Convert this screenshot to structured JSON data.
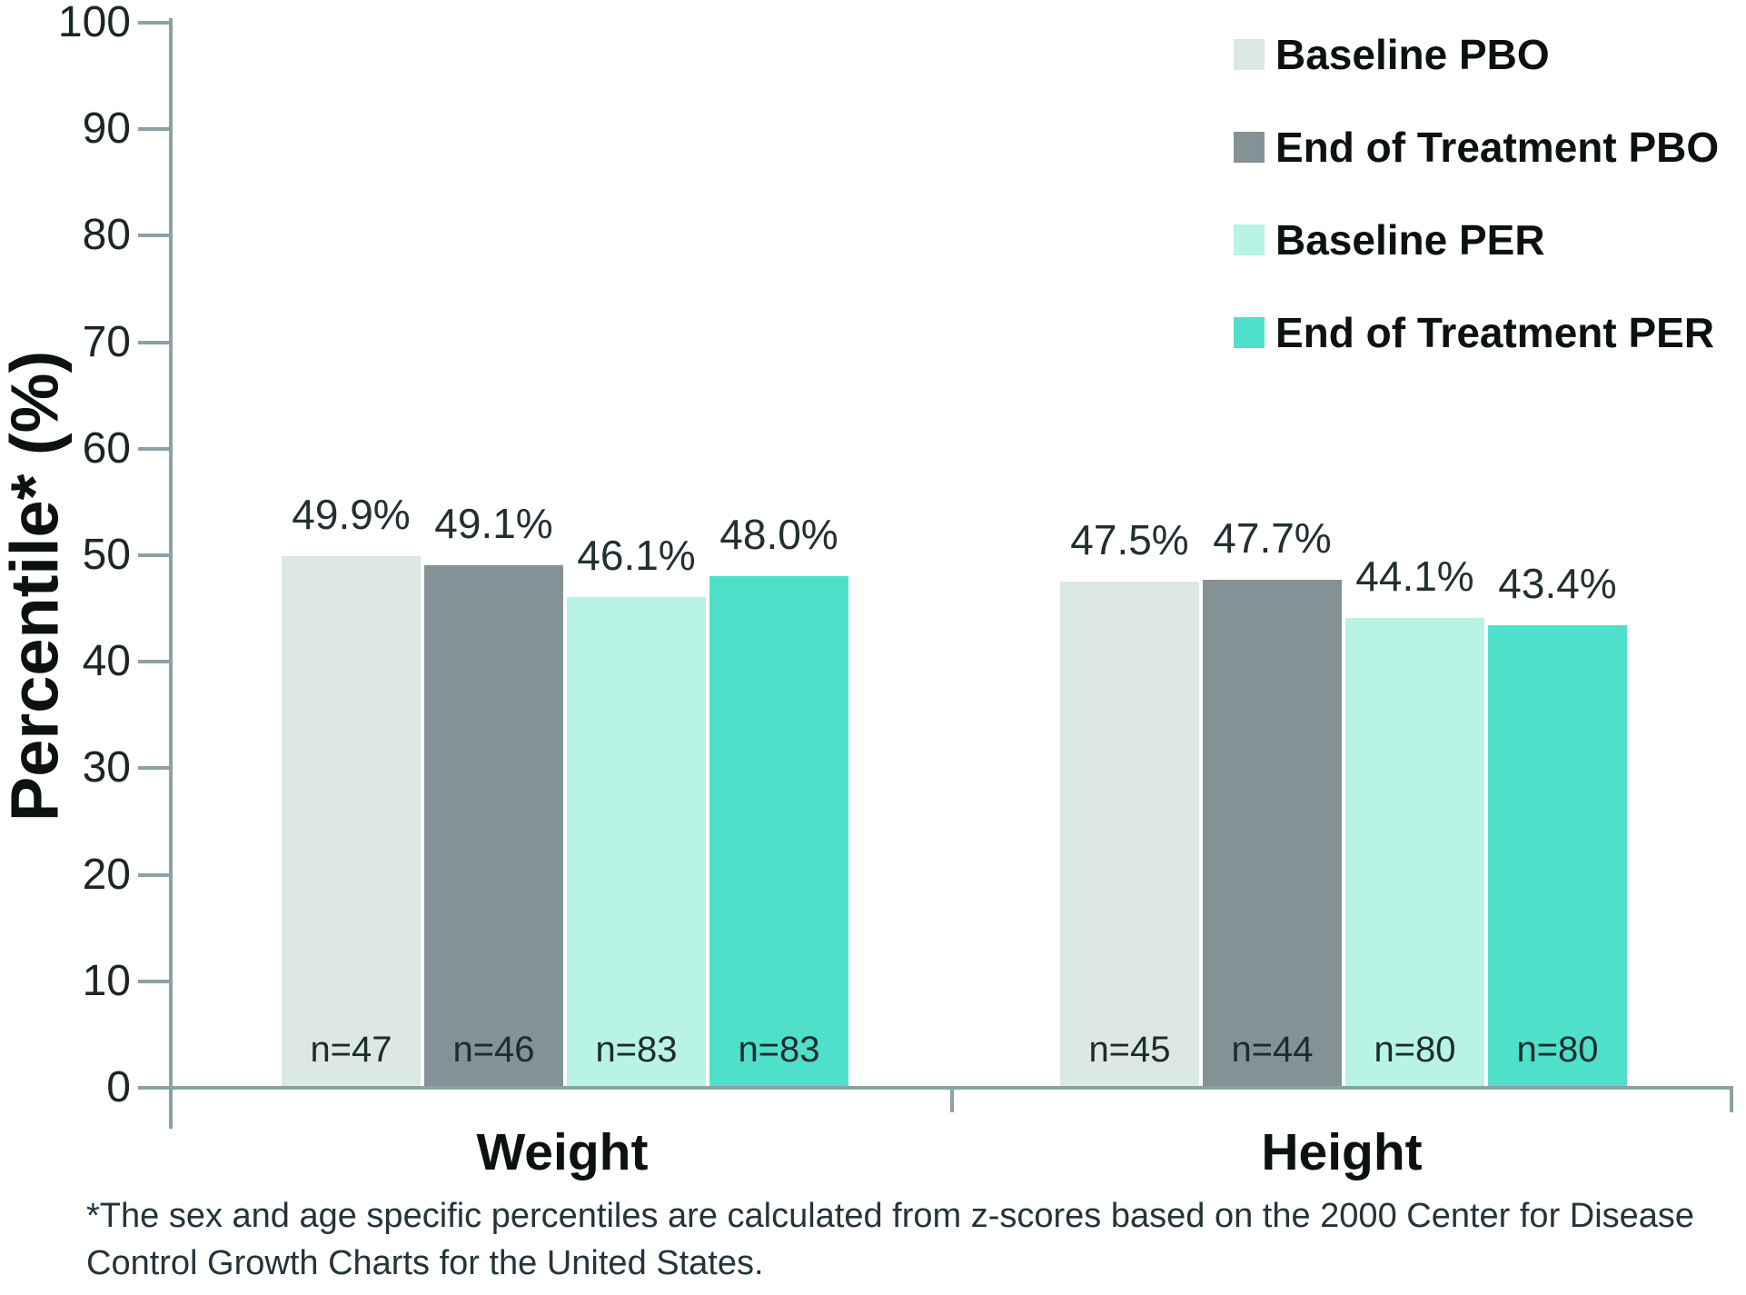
{
  "chart_data": {
    "type": "bar",
    "title": "",
    "ylabel": "Percentile* (%)",
    "xlabel": "",
    "ylim": [
      0,
      100
    ],
    "yticks": [
      0,
      10,
      20,
      30,
      40,
      50,
      60,
      70,
      80,
      90,
      100
    ],
    "grid": false,
    "legend_position": "top-right",
    "categories": [
      "Weight",
      "Height"
    ],
    "series": [
      {
        "name": "Baseline PBO",
        "color": "#dce8e4",
        "values": [
          49.9,
          47.5
        ],
        "n": [
          47,
          45
        ]
      },
      {
        "name": "End of Treatment PBO",
        "color": "#859295",
        "values": [
          49.1,
          47.7
        ],
        "n": [
          46,
          44
        ]
      },
      {
        "name": "Baseline PER",
        "color": "#b8f3e4",
        "values": [
          46.1,
          44.1
        ],
        "n": [
          83,
          80
        ]
      },
      {
        "name": "End of Treatment PER",
        "color": "#4ee0cb",
        "values": [
          48.0,
          43.4
        ],
        "n": [
          83,
          80
        ]
      }
    ],
    "value_label_suffix": "%",
    "n_label_prefix": "n="
  },
  "footnote": "*The sex and age specific percentiles are calculated from z-scores based on the 2000 Center for Disease Control Growth Charts for the United States.",
  "colors": {
    "axis": "#8aa2a4",
    "tick_text": "#1b2627",
    "value_text": "#223032",
    "bold_text": "#0c1112"
  }
}
